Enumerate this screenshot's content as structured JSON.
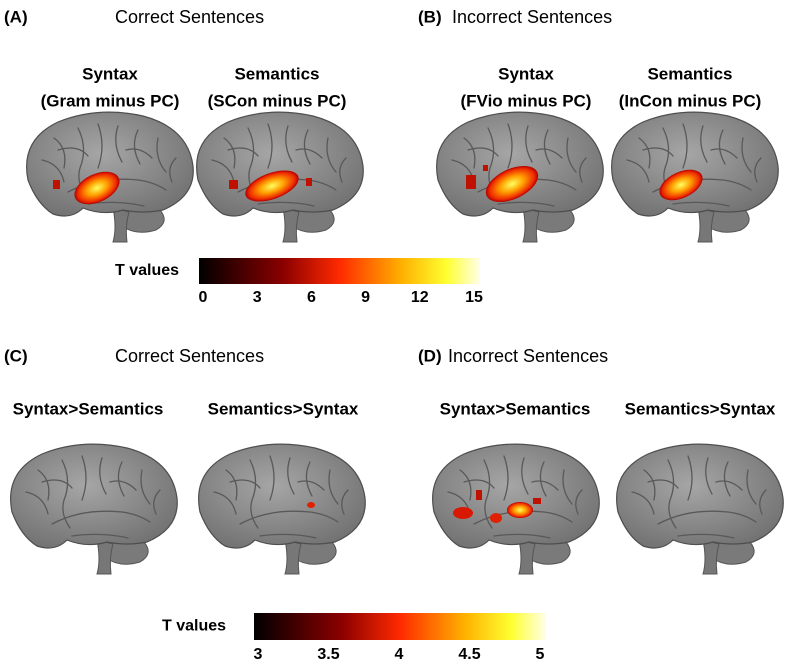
{
  "panels": [
    {
      "label": "(A)",
      "title": "Correct Sentences",
      "contrasts": [
        {
          "name": "Syntax",
          "detail": "(Gram minus PC)"
        },
        {
          "name": "Semantics",
          "detail": "(SCon minus PC)"
        }
      ]
    },
    {
      "label": "(B)",
      "title": "Incorrect Sentences",
      "contrasts": [
        {
          "name": "Syntax",
          "detail": "(FVio minus PC)"
        },
        {
          "name": "Semantics",
          "detail": "(InCon minus PC)"
        }
      ]
    },
    {
      "label": "(C)",
      "title": "Correct Sentences",
      "contrasts": [
        {
          "name": "Syntax>Semantics"
        },
        {
          "name": "Semantics>Syntax"
        }
      ]
    },
    {
      "label": "(D)",
      "title": "Incorrect Sentences",
      "contrasts": [
        {
          "name": "Syntax>Semantics"
        },
        {
          "name": "Semantics>Syntax"
        }
      ]
    }
  ],
  "colorbars": [
    {
      "label": "T values",
      "lim": [
        0,
        15
      ],
      "ticks": [
        0,
        3,
        6,
        9,
        12,
        15
      ]
    },
    {
      "label": "T values",
      "lim": [
        3,
        5
      ],
      "ticks": [
        3,
        3.5,
        4,
        4.5,
        5
      ]
    }
  ]
}
